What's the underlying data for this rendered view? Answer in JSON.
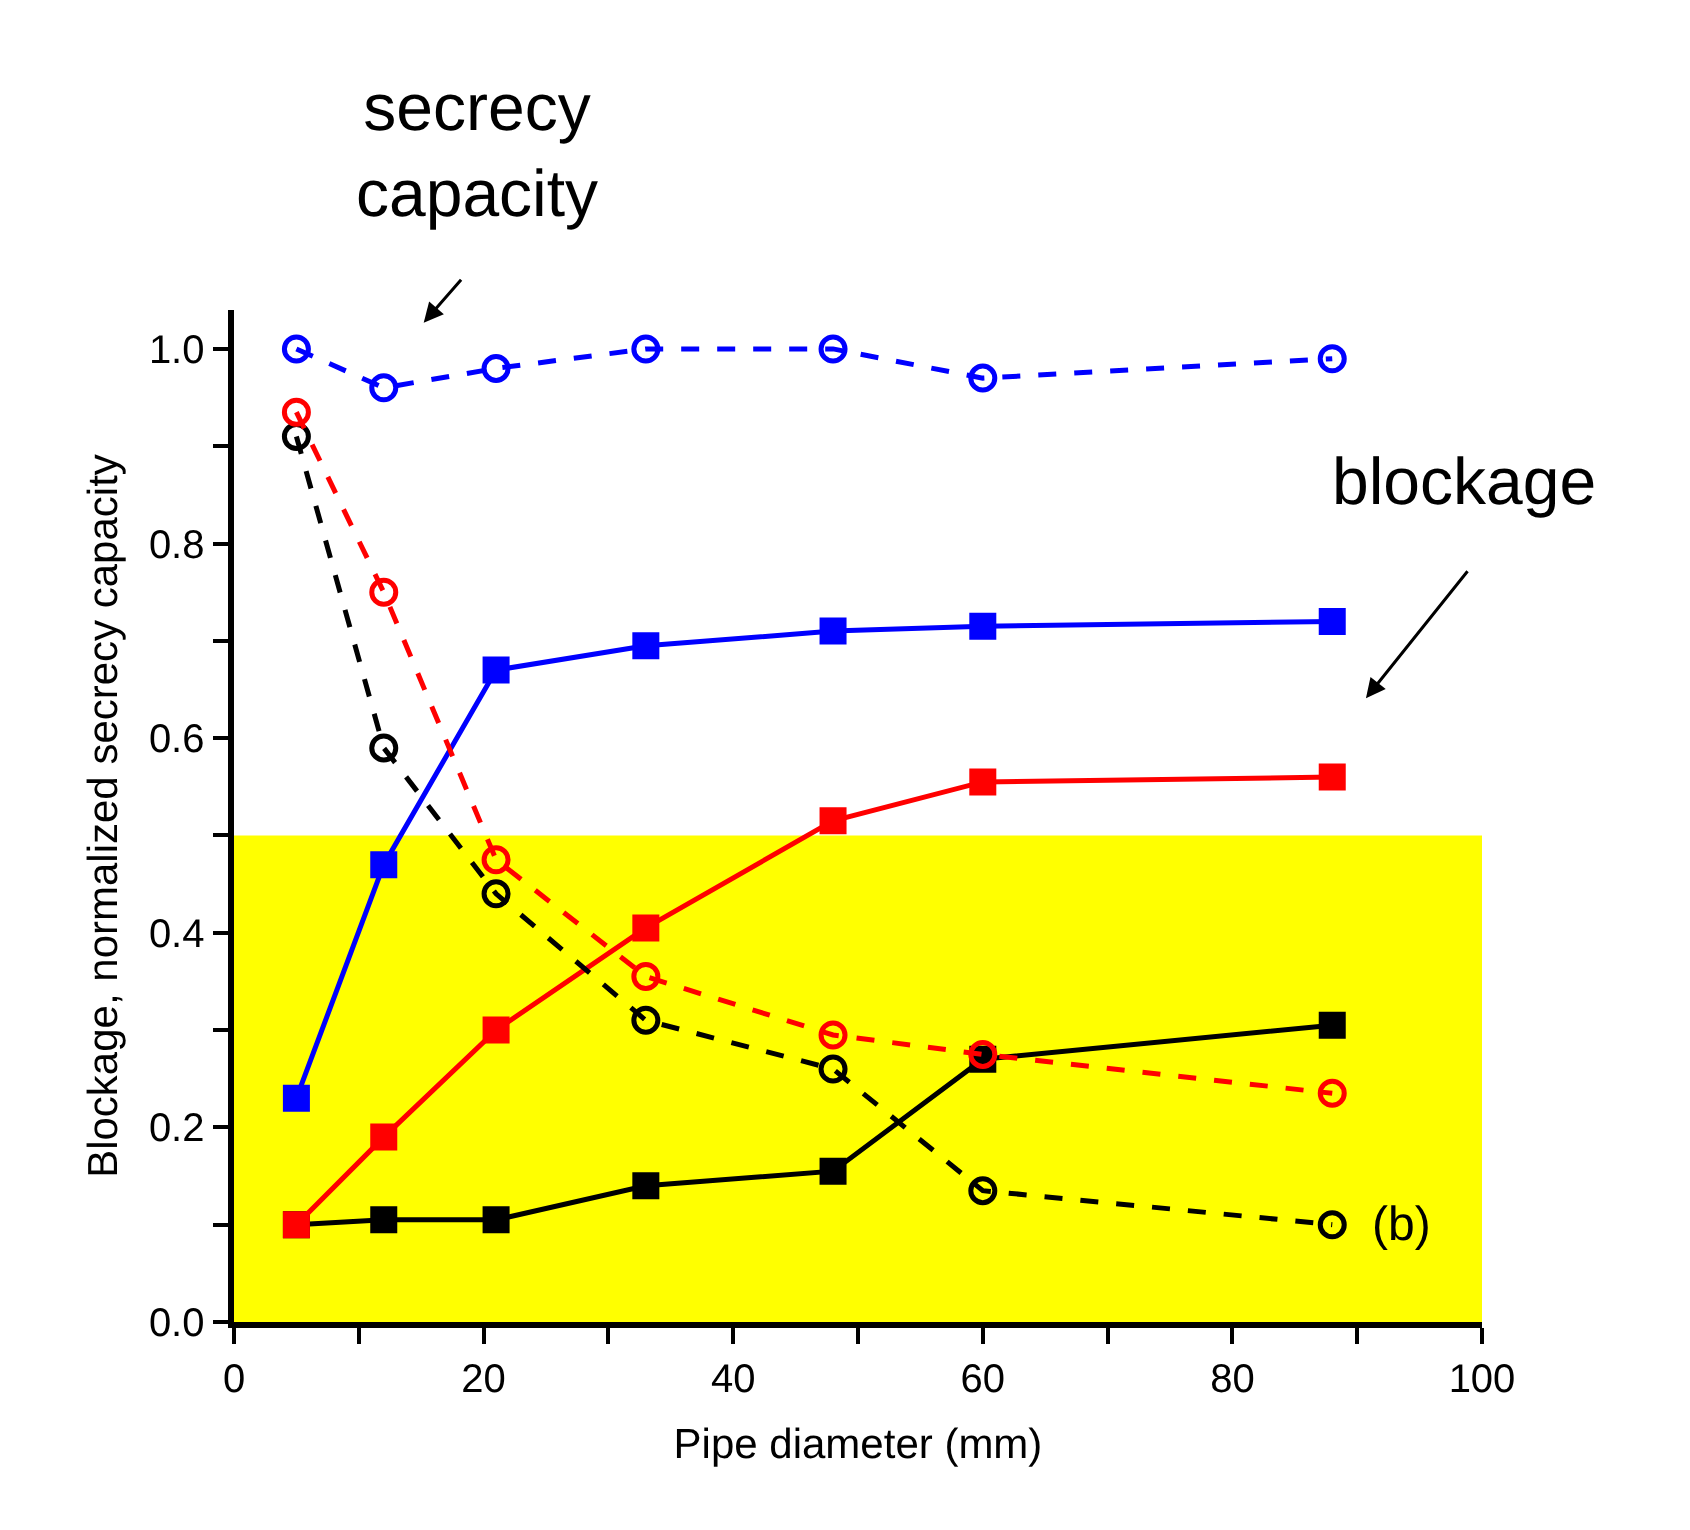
{
  "chart_data": {
    "type": "line",
    "xlabel": "Pipe diameter (mm)",
    "ylabel": "Blockage, normalized secrecy capacity",
    "x": [
      5,
      12,
      21,
      33,
      48,
      60,
      88
    ],
    "series": [
      {
        "color": "#000000",
        "marker": "square",
        "line_style": "solid",
        "values": [
          0.1,
          0.105,
          0.105,
          0.14,
          0.155,
          0.27,
          0.305
        ]
      },
      {
        "color": "#0000ff",
        "marker": "square",
        "line_style": "solid",
        "values": [
          0.23,
          0.47,
          0.67,
          0.695,
          0.71,
          0.715,
          0.72
        ]
      },
      {
        "color": "#ff0000",
        "marker": "square",
        "line_style": "solid",
        "values": [
          0.1,
          0.19,
          0.3,
          0.405,
          0.515,
          0.555,
          0.56
        ]
      },
      {
        "color": "#000000",
        "marker": "circle",
        "line_style": "dashed",
        "values": [
          0.91,
          0.59,
          0.44,
          0.31,
          0.26,
          0.135,
          0.1
        ]
      },
      {
        "color": "#0000ff",
        "marker": "circle",
        "line_style": "dashed",
        "values": [
          1.0,
          0.96,
          0.98,
          1.0,
          1.0,
          0.97,
          0.99
        ]
      },
      {
        "color": "#ff0000",
        "marker": "circle",
        "line_style": "dashed",
        "values": [
          0.935,
          0.75,
          0.475,
          0.355,
          0.295,
          0.275,
          0.235
        ]
      }
    ],
    "xlim": [
      0,
      100
    ],
    "ylim": [
      0,
      1.04
    ],
    "xticks": [
      0,
      {
        "value": 10,
        "label": null
      },
      20,
      {
        "value": 30,
        "label": null
      },
      40,
      {
        "value": 50,
        "label": null
      },
      60,
      {
        "value": 70,
        "label": null
      },
      80,
      {
        "value": 90,
        "label": null
      },
      100
    ],
    "yticks": [
      {
        "value": 0,
        "label": "0.0"
      },
      {
        "value": 0.1,
        "label": null
      },
      0.2,
      {
        "value": 0.3,
        "label": null
      },
      0.4,
      {
        "value": 0.5,
        "label": null
      },
      0.6,
      {
        "value": 0.7,
        "label": null
      },
      0.8,
      {
        "value": 0.9,
        "label": null
      },
      {
        "value": 1,
        "label": "1.0"
      }
    ],
    "bands": [
      {
        "axis": "y",
        "from": 0,
        "to": 0.5,
        "color": "#ffff00"
      }
    ],
    "annotations": [
      "secrecy\ncapacity",
      "blockage",
      "(b)"
    ]
  }
}
